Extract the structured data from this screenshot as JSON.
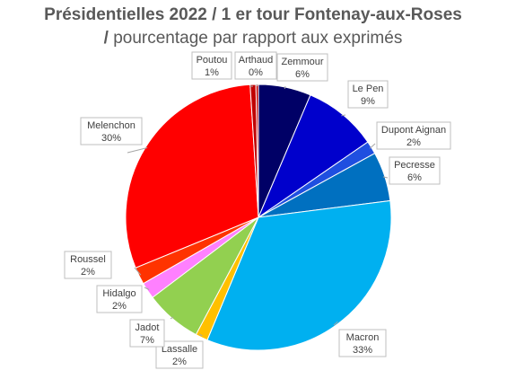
{
  "chart_data": {
    "type": "pie",
    "title_line1": "Présidentielles 2022 / 1 er tour Fontenay-aux-Roses",
    "title_line2_bold": "/",
    "title_line2": " pourcentage par rapport aux exprimés",
    "slices": [
      {
        "name": "Zemmour",
        "value": 6.4,
        "label": "6%",
        "color": "#000066"
      },
      {
        "name": "Le Pen",
        "value": 9.0,
        "label": "9%",
        "color": "#0000cc"
      },
      {
        "name": "Dupont Aignan",
        "value": 1.6,
        "label": "2%",
        "color": "#1f4fe0"
      },
      {
        "name": "Pecresse",
        "value": 6.0,
        "label": "6%",
        "color": "#0070c0"
      },
      {
        "name": "Macron",
        "value": 33.3,
        "label": "33%",
        "color": "#00b0f0"
      },
      {
        "name": "Lassalle",
        "value": 1.5,
        "label": "2%",
        "color": "#ffc000"
      },
      {
        "name": "Jadot",
        "value": 6.9,
        "label": "7%",
        "color": "#92d050"
      },
      {
        "name": "Hidalgo",
        "value": 2.0,
        "label": "2%",
        "color": "#ff80ff"
      },
      {
        "name": "Roussel",
        "value": 2.1,
        "label": "2%",
        "color": "#ff3300"
      },
      {
        "name": "Melenchon",
        "value": 30.2,
        "label": "30%",
        "color": "#ff0000"
      },
      {
        "name": "Poutou",
        "value": 0.7,
        "label": "1%",
        "color": "#c00000"
      },
      {
        "name": "Arthaud",
        "value": 0.3,
        "label": "0%",
        "color": "#c00000"
      }
    ]
  }
}
